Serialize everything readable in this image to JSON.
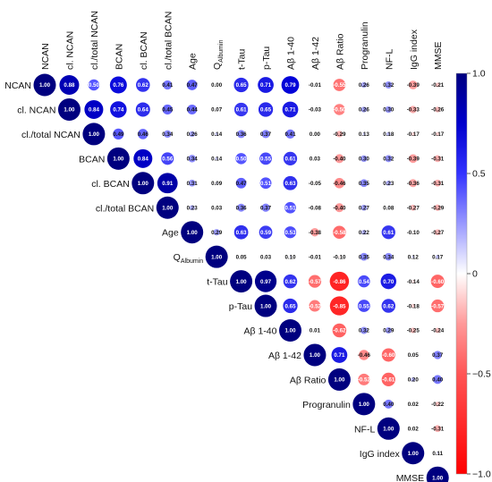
{
  "chart_data": {
    "type": "heatmap",
    "variables": [
      "NCAN",
      "cl. NCAN",
      "cl./total NCAN",
      "BCAN",
      "cl. BCAN",
      "cl./total BCAN",
      "Age",
      "QAlbumin",
      "t-Tau",
      "p-Tau",
      "Aβ 1-40",
      "Aβ 1-42",
      "Aβ Ratio",
      "Progranulin",
      "NF-L",
      "IgG index",
      "MMSE"
    ],
    "labels": [
      {
        "main": "NCAN",
        "sub": ""
      },
      {
        "main": "cl. NCAN",
        "sub": ""
      },
      {
        "main": "cl./total NCAN",
        "sub": ""
      },
      {
        "main": "BCAN",
        "sub": ""
      },
      {
        "main": "cl. BCAN",
        "sub": ""
      },
      {
        "main": "cl./total BCAN",
        "sub": ""
      },
      {
        "main": "Age",
        "sub": ""
      },
      {
        "main": "Q",
        "sub": "Albumin"
      },
      {
        "main": "t-Tau",
        "sub": ""
      },
      {
        "main": "p-Tau",
        "sub": ""
      },
      {
        "main": "Aβ 1-40",
        "sub": ""
      },
      {
        "main": "Aβ 1-42",
        "sub": ""
      },
      {
        "main": "Aβ Ratio",
        "sub": ""
      },
      {
        "main": "Progranulin",
        "sub": ""
      },
      {
        "main": "NF-L",
        "sub": ""
      },
      {
        "main": "IgG index",
        "sub": ""
      },
      {
        "main": "MMSE",
        "sub": ""
      }
    ],
    "values": [
      [
        "1.00",
        "0.88",
        "0.50",
        "0.76",
        "0.62",
        "0.41",
        "0.47",
        "0.00",
        "0.65",
        "0.71",
        "0.79",
        "-0.01",
        "-0.55",
        "0.26",
        "0.32",
        "-0.39",
        "-0.21"
      ],
      [
        "1.00",
        "0.84",
        "0.74",
        "0.64",
        "0.45",
        "0.44",
        "0.07",
        "0.61",
        "0.65",
        "0.71",
        "-0.03",
        "-0.50",
        "0.26",
        "0.30",
        "-0.33",
        "-0.26"
      ],
      [
        "1.00",
        "0.49",
        "0.46",
        "0.34",
        "0.26",
        "0.14",
        "0.36",
        "0.37",
        "0.41",
        "0.00",
        "-0.29",
        "0.13",
        "0.18",
        "-0.17",
        "-0.17"
      ],
      [
        "1.00",
        "0.84",
        "0.56",
        "0.34",
        "0.14",
        "0.50",
        "0.55",
        "0.61",
        "0.03",
        "-0.40",
        "0.30",
        "0.32",
        "-0.39",
        "-0.31"
      ],
      [
        "1.00",
        "0.91",
        "0.31",
        "0.09",
        "0.47",
        "0.51",
        "0.63",
        "-0.05",
        "-0.46",
        "0.35",
        "0.23",
        "-0.36",
        "-0.31"
      ],
      [
        "1.00",
        "0.23",
        "0.03",
        "0.36",
        "0.37",
        "0.51",
        "-0.08",
        "-0.40",
        "0.27",
        "0.08",
        "-0.27",
        "-0.29"
      ],
      [
        "1.00",
        "0.29",
        "0.63",
        "0.59",
        "0.53",
        "-0.38",
        "-0.58",
        "0.22",
        "0.61",
        "-0.10",
        "-0.27"
      ],
      [
        "1.00",
        "0.05",
        "0.03",
        "0.10",
        "-0.01",
        "-0.10",
        "0.35",
        "0.34",
        "0.12",
        "0.17"
      ],
      [
        "1.00",
        "0.97",
        "0.62",
        "-0.57",
        "-0.86",
        "0.54",
        "0.70",
        "-0.14",
        "-0.60"
      ],
      [
        "1.00",
        "0.65",
        "-0.52",
        "-0.85",
        "0.55",
        "0.62",
        "-0.18",
        "-0.57"
      ],
      [
        "1.00",
        "0.01",
        "-0.62",
        "0.32",
        "0.29",
        "-0.25",
        "-0.24"
      ],
      [
        "1.00",
        "0.71",
        "-0.46",
        "-0.60",
        "0.05",
        "0.37"
      ],
      [
        "1.00",
        "-0.52",
        "-0.61",
        "0.20",
        "0.40"
      ],
      [
        "1.00",
        "0.40",
        "0.02",
        "-0.22"
      ],
      [
        "1.00",
        "0.02",
        "-0.31"
      ],
      [
        "1.00",
        "0.11"
      ],
      [
        "1.00"
      ]
    ],
    "colorbar": {
      "ticks": [
        "1.0",
        "0.5",
        "0",
        "−0.5",
        "−1.0"
      ],
      "tick_values": [
        1,
        0.5,
        0,
        -0.5,
        -1
      ],
      "range": [
        -1,
        1
      ],
      "colors": {
        "positive": "#00007f",
        "mid": "#ffffff",
        "negative": "#ff0000"
      }
    },
    "grid": false
  }
}
